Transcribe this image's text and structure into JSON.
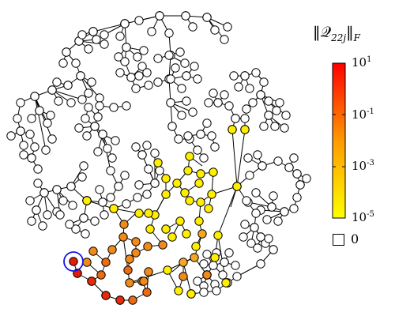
{
  "colorbar": {
    "title": "‖𝒬22j‖F",
    "title_main": "‖𝒬",
    "title_sub": "22j",
    "title_close": "‖",
    "title_sub2": "F",
    "ticks": [
      {
        "base": "10",
        "exp": "1"
      },
      {
        "base": "10",
        "exp": "-1"
      },
      {
        "base": "10",
        "exp": "-3"
      },
      {
        "base": "10",
        "exp": "-5"
      }
    ],
    "zero_label": "0",
    "scale": "log",
    "range": [
      "10^-5",
      "10^1"
    ],
    "colors": {
      "low": "#ffff00",
      "mid": "#ff9a00",
      "high": "#ff0000"
    }
  },
  "graph": {
    "node_default_fill": "#ffffff",
    "edge_color": "#000000",
    "highlight_ring_color": "#1414e6"
  }
}
